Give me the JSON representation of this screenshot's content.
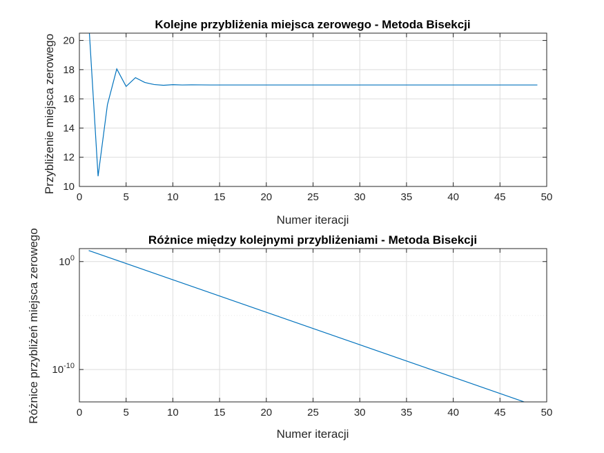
{
  "chart_data": [
    {
      "type": "line",
      "title": "Kolejne przybliżenia miejsca zerowego - Metoda Bisekcji",
      "xlabel": "Numer iteracji",
      "ylabel": "Przybliżenie miejsca zerowego",
      "xlim": [
        0,
        50
      ],
      "ylim": [
        10,
        20.5
      ],
      "yscale": "linear",
      "grid": true,
      "xticks": [
        "0",
        "5",
        "10",
        "15",
        "20",
        "25",
        "30",
        "35",
        "40",
        "45",
        "50"
      ],
      "yticks": [
        "10",
        "12",
        "14",
        "16",
        "18",
        "20"
      ],
      "series": [
        {
          "color": "#0072bd",
          "x": [
            1,
            2,
            3,
            4,
            5,
            6,
            7,
            8,
            9,
            10,
            11,
            12,
            13,
            14,
            15,
            16,
            17,
            18,
            19,
            20,
            21,
            22,
            23,
            24,
            25,
            26,
            27,
            28,
            29,
            30,
            31,
            32,
            33,
            34,
            35,
            36,
            37,
            38,
            39,
            40,
            41,
            42,
            43,
            44,
            45,
            46,
            47,
            48,
            49
          ],
          "y": [
            21.25,
            10.7,
            15.6,
            18.05,
            16.85,
            17.45,
            17.12,
            16.98,
            16.93,
            16.97,
            16.95,
            16.96,
            16.955,
            16.95,
            16.95,
            16.95,
            16.95,
            16.95,
            16.95,
            16.95,
            16.95,
            16.95,
            16.95,
            16.95,
            16.95,
            16.95,
            16.95,
            16.95,
            16.95,
            16.95,
            16.95,
            16.95,
            16.95,
            16.95,
            16.95,
            16.95,
            16.95,
            16.95,
            16.95,
            16.95,
            16.95,
            16.95,
            16.95,
            16.95,
            16.95,
            16.95,
            16.95,
            16.95,
            16.95
          ]
        }
      ]
    },
    {
      "type": "line",
      "title": "Różnice między kolejnymi przybliżeniami - Metoda Bisekcji",
      "xlabel": "Numer iteracji",
      "ylabel": "Różnice przybliżeń miejsca zerowego",
      "xlim": [
        0,
        50
      ],
      "ylim_log10": [
        -13,
        1.2
      ],
      "yscale": "log",
      "grid": true,
      "xticks": [
        "0",
        "5",
        "10",
        "15",
        "20",
        "25",
        "30",
        "35",
        "40",
        "45",
        "50"
      ],
      "yticks": [
        {
          "base": "10",
          "exp": "0",
          "log10": 0
        },
        {
          "base": "10",
          "exp": "-10",
          "log10": -10
        }
      ],
      "series": [
        {
          "color": "#0072bd",
          "x": [
            1,
            48
          ],
          "y": [
            10.55,
            7.5e-14
          ]
        }
      ]
    }
  ]
}
